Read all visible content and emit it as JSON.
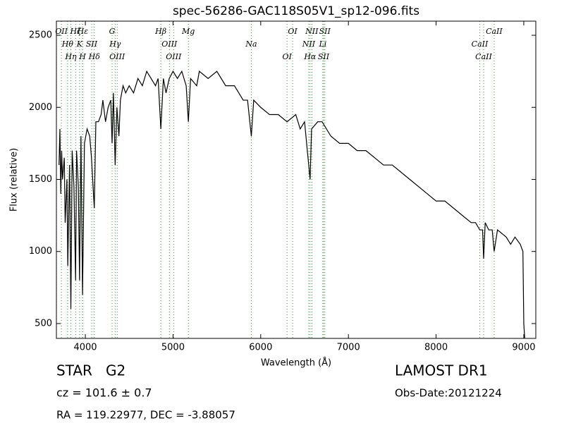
{
  "chart_data": {
    "type": "line",
    "title": "spec-56286-GAC118S05V1_sp12-096.fits",
    "x_label": "Wavelength (Å)",
    "y_label": "Flux (relative)",
    "xlim": [
      3670,
      9137
    ],
    "ylim": [
      397,
      2598
    ],
    "xticks": [
      4000,
      5000,
      6000,
      7000,
      8000,
      9000
    ],
    "yticks": [
      500,
      1000,
      1500,
      2000,
      2500
    ],
    "series": [
      {
        "color": "#000000",
        "x": [
          3700,
          3710,
          3720,
          3730,
          3740,
          3760,
          3770,
          3790,
          3800,
          3820,
          3835,
          3850,
          3870,
          3889,
          3900,
          3920,
          3934,
          3950,
          3968,
          3990,
          4020,
          4050,
          4070,
          4102,
          4120,
          4150,
          4180,
          4200,
          4230,
          4260,
          4290,
          4305,
          4320,
          4340,
          4360,
          4383,
          4400,
          4430,
          4460,
          4500,
          4550,
          4600,
          4650,
          4700,
          4750,
          4800,
          4830,
          4861,
          4890,
          4920,
          4957,
          5000,
          5050,
          5100,
          5150,
          5175,
          5200,
          5270,
          5300,
          5400,
          5500,
          5600,
          5700,
          5800,
          5850,
          5893,
          5920,
          6000,
          6100,
          6200,
          6300,
          6400,
          6450,
          6500,
          6563,
          6580,
          6650,
          6700,
          6800,
          6900,
          7000,
          7100,
          7200,
          7300,
          7400,
          7500,
          7600,
          7700,
          7800,
          7900,
          8000,
          8100,
          8200,
          8300,
          8400,
          8450,
          8498,
          8530,
          8542,
          8560,
          8600,
          8640,
          8662,
          8700,
          8800,
          8850,
          8900,
          8960,
          8990,
          9000,
          9010
        ],
        "values": [
          1600,
          1850,
          1400,
          1700,
          1500,
          1650,
          1200,
          1500,
          900,
          1600,
          600,
          1700,
          1450,
          800,
          1700,
          1450,
          800,
          1800,
          700,
          1750,
          1850,
          1800,
          1650,
          1300,
          1900,
          1900,
          1950,
          2050,
          1900,
          2000,
          2050,
          1750,
          2100,
          1600,
          2000,
          1800,
          2050,
          2150,
          2100,
          2150,
          2100,
          2200,
          2150,
          2250,
          2200,
          2150,
          2200,
          1850,
          2200,
          2100,
          2200,
          2250,
          2200,
          2250,
          2150,
          1900,
          2200,
          2150,
          2250,
          2200,
          2250,
          2150,
          2150,
          2050,
          2050,
          1800,
          2050,
          2000,
          1950,
          1950,
          1900,
          1950,
          1850,
          1900,
          1500,
          1850,
          1900,
          1900,
          1800,
          1750,
          1750,
          1700,
          1700,
          1650,
          1600,
          1600,
          1550,
          1500,
          1450,
          1400,
          1350,
          1350,
          1300,
          1250,
          1200,
          1200,
          1150,
          1150,
          950,
          1200,
          1150,
          1150,
          1000,
          1150,
          1100,
          1050,
          1100,
          1050,
          1000,
          500,
          400
        ]
      }
    ],
    "spectral_lines_color": "#2ca02c",
    "spectral_lines": [
      {
        "label": "OII",
        "x": 3727
      },
      {
        "label": "Hθ",
        "x": 3798
      },
      {
        "label": "Hη",
        "x": 3835
      },
      {
        "label": "Hζ",
        "x": 3889
      },
      {
        "label": "K",
        "x": 3934
      },
      {
        "label": "H",
        "x": 3968
      },
      {
        "label": "Hε",
        "x": 3970
      },
      {
        "label": "SII",
        "x": 4072
      },
      {
        "label": "Hδ",
        "x": 4102
      },
      {
        "label": "G",
        "x": 4305
      },
      {
        "label": "Hγ",
        "x": 4340
      },
      {
        "label": "OIII",
        "x": 4363
      },
      {
        "label": "Hβ",
        "x": 4861
      },
      {
        "label": "OIII",
        "x": 4959
      },
      {
        "label": "OIII",
        "x": 5007
      },
      {
        "label": "Mg",
        "x": 5175
      },
      {
        "label": "Na",
        "x": 5893
      },
      {
        "label": "OI",
        "x": 6300
      },
      {
        "label": "OI",
        "x": 6364
      },
      {
        "label": "NII",
        "x": 6548
      },
      {
        "label": "Hα",
        "x": 6563
      },
      {
        "label": "NII",
        "x": 6583
      },
      {
        "label": "Li",
        "x": 6708
      },
      {
        "label": "SII",
        "x": 6717
      },
      {
        "label": "SII",
        "x": 6731
      },
      {
        "label": "CaII",
        "x": 8498
      },
      {
        "label": "CaII",
        "x": 8542
      },
      {
        "label": "CaII",
        "x": 8662
      }
    ],
    "info": [
      "STAR   G2",
      "cz = 101.6 ± 0.7",
      "RA = 119.22977, DEC = -3.88057",
      "LAMOST DR1",
      "Obs-Date:20121224"
    ]
  }
}
